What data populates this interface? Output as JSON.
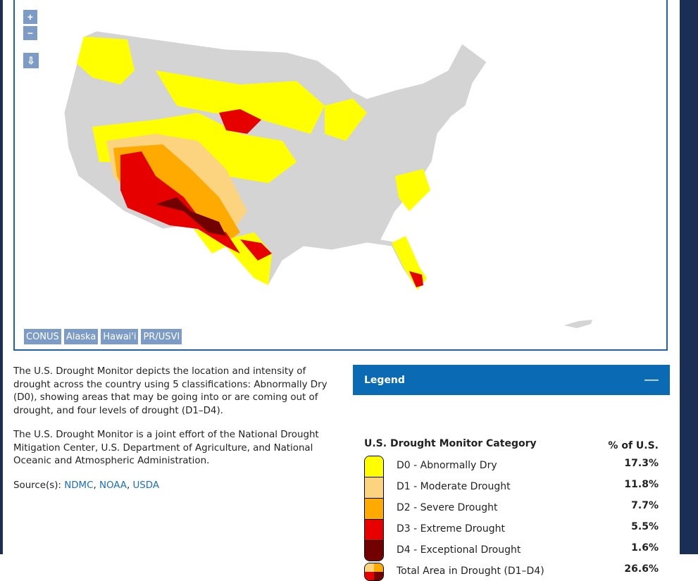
{
  "map": {
    "region_buttons": [
      "CONUS",
      "Alaska",
      "Hawai'i",
      "PR/USVI"
    ]
  },
  "description": {
    "paragraphs": [
      "The U.S. Drought Monitor depicts the location and intensity of drought across the country using 5 classifications: Abnormally Dry (D0), showing areas that may be going into or are coming out of drought, and four levels of drought (D1–D4).",
      "The U.S. Drought Monitor is a joint effort of the National Drought Mitigation Center, U.S. Department of Agriculture, and National Oceanic and Atmospheric Administration."
    ],
    "source_label": "Source(s):",
    "sources": [
      "NDMC",
      "NOAA",
      "USDA"
    ]
  },
  "legend": {
    "title": "Legend",
    "category_header": "U.S. Drought Monitor Category",
    "percent_header": "% of U.S.",
    "rows": [
      {
        "label": "D0 - Abnormally Dry",
        "percent": "17.3%",
        "color": "#ffff00"
      },
      {
        "label": "D1 - Moderate Drought",
        "percent": "11.8%",
        "color": "#fcd37f"
      },
      {
        "label": "D2 - Severe Drought",
        "percent": "7.7%",
        "color": "#ffaa00"
      },
      {
        "label": "D3 - Extreme Drought",
        "percent": "5.5%",
        "color": "#e60000"
      },
      {
        "label": "D4 - Exceptional Drought",
        "percent": "1.6%",
        "color": "#730000"
      },
      {
        "label": "Total Area in Drought (D1–D4)",
        "percent": "26.6%"
      }
    ]
  }
}
